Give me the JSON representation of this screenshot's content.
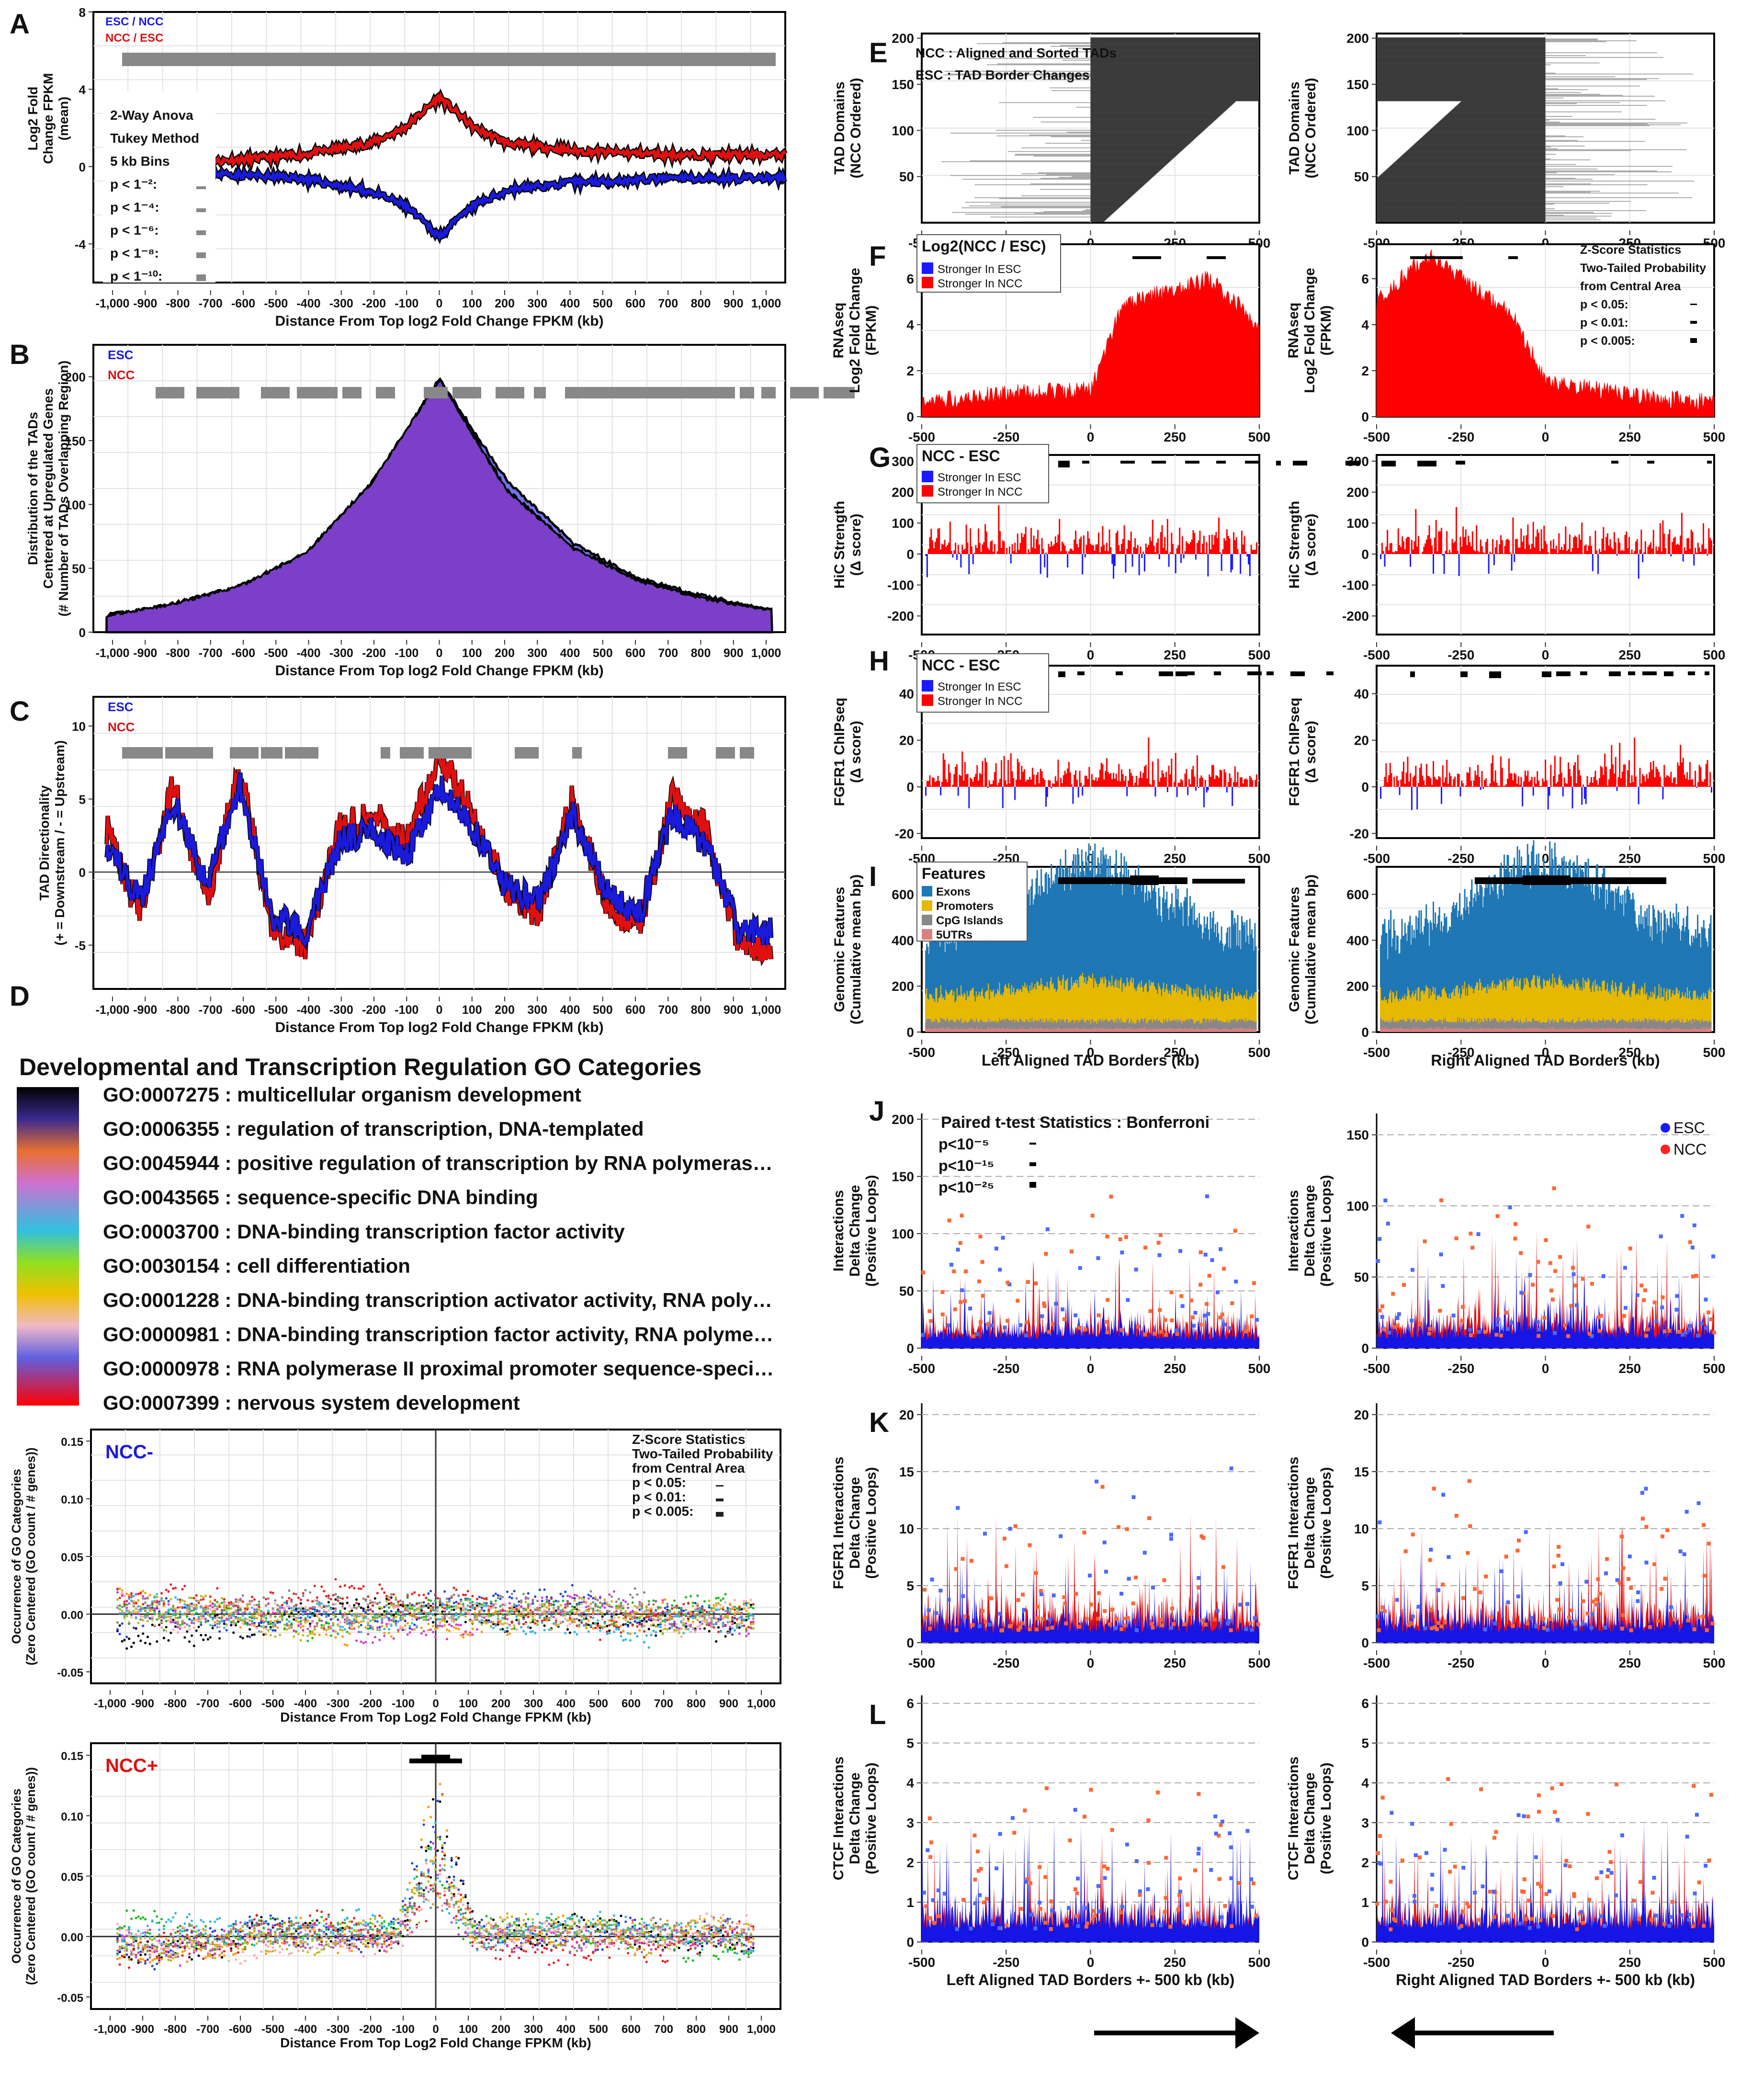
{
  "panel_letters": [
    "A",
    "B",
    "C",
    "D",
    "E",
    "F",
    "G",
    "H",
    "I",
    "J",
    "K",
    "L"
  ],
  "common": {
    "x_dist_label": "Distance From Top log2 Fold Change FPKM (kb)",
    "x_dist_label_go": "Distance From Top Log2 Fold Change FPKM (kb)",
    "x_dist_ticks": [
      "-1,000",
      "-900",
      "-800",
      "-700",
      "-600",
      "-500",
      "-400",
      "-300",
      "-200",
      "-100",
      "0",
      "100",
      "200",
      "300",
      "400",
      "500",
      "600",
      "700",
      "800",
      "900",
      "1,000"
    ],
    "x_tad_ticks": [
      "-500",
      "-250",
      "0",
      "250",
      "500"
    ],
    "left_aligned": "Left Aligned TAD Borders (kb)",
    "right_aligned": "Right Aligned TAD Borders (kb)",
    "left_aligned_pm": "Left Aligned TAD Borders +- 500 kb (kb)",
    "right_aligned_pm": "Right Aligned TAD Borders +- 500 kb (kb)",
    "colors": {
      "esc": "#1a1adb",
      "ncc": "#e01010",
      "grey": "#888888",
      "purple": "#7b3fc9",
      "exons": "#1f77b4",
      "promoters": "#e6b800",
      "cpg": "#888888",
      "utr": "#d98080"
    }
  },
  "chart_data": [
    {
      "panel": "A",
      "type": "line",
      "title": "",
      "ylabel": "Log2 Fold Change FPKM (mean)",
      "xlabel": "Distance From Top log2 Fold Change FPKM (kb)",
      "xlim": [
        -1000,
        1000
      ],
      "ylim": [
        -6,
        8
      ],
      "yticks": [
        "8",
        "4",
        "0",
        "-4"
      ],
      "legend": [
        "ESC / NCC",
        "NCC / ESC"
      ],
      "stats_text": [
        "2-Way Anova",
        "Tukey Method",
        "5 kb Bins",
        "p < 1⁻²:",
        "p < 1⁻⁴:",
        "p < 1⁻⁶:",
        "p < 1⁻⁸:",
        "p < 1⁻¹⁰:"
      ],
      "series": [
        {
          "name": "NCC / ESC",
          "x": [
            -700,
            -400,
            -200,
            -100,
            0,
            100,
            200,
            400,
            700,
            1000
          ],
          "values": [
            0.2,
            0.6,
            1.2,
            2.0,
            3.6,
            2.0,
            1.2,
            0.8,
            0.6,
            0.6
          ]
        },
        {
          "name": "ESC / NCC",
          "x": [
            -700,
            -400,
            -200,
            -100,
            0,
            100,
            200,
            400,
            700,
            1000
          ],
          "values": [
            -0.3,
            -0.6,
            -1.3,
            -2.0,
            -3.6,
            -2.0,
            -1.2,
            -0.8,
            -0.6,
            -0.6
          ]
        }
      ]
    },
    {
      "panel": "B",
      "type": "area",
      "ylabel": "Distribution of the TADs Centered at Upregulated Genes (# Number of TADs Overlapping Region)",
      "xlabel": "Distance From Top log2 Fold Change FPKM (kb)",
      "xlim": [
        -1000,
        1000
      ],
      "ylim": [
        0,
        225
      ],
      "yticks": [
        "200",
        "150",
        "100",
        "50",
        "0"
      ],
      "legend": [
        "ESC",
        "NCC"
      ],
      "series": [
        {
          "name": "ESC",
          "x": [
            -1000,
            -800,
            -600,
            -400,
            -200,
            0,
            200,
            400,
            600,
            800,
            1000
          ],
          "values": [
            12,
            20,
            35,
            60,
            115,
            198,
            120,
            70,
            42,
            28,
            17
          ]
        },
        {
          "name": "NCC",
          "x": [
            -1000,
            -800,
            -600,
            -400,
            -200,
            0,
            200,
            400,
            600,
            800,
            1000
          ],
          "values": [
            13,
            22,
            36,
            62,
            118,
            198,
            112,
            66,
            40,
            26,
            17
          ]
        }
      ]
    },
    {
      "panel": "C",
      "type": "line",
      "ylabel": "TAD Directionality (+ = Downstream / - = Upstream)",
      "xlabel": "Distance From Top log2 Fold Change FPKM (kb)",
      "xlim": [
        -1000,
        1000
      ],
      "ylim": [
        -8,
        12
      ],
      "yticks": [
        "10",
        "5",
        "0",
        "-5"
      ],
      "legend": [
        "ESC",
        "NCC"
      ],
      "series": [
        {
          "name": "ESC",
          "x": [
            -1000,
            -900,
            -800,
            -700,
            -600,
            -500,
            -400,
            -300,
            -200,
            -100,
            0,
            100,
            200,
            300,
            400,
            500,
            600,
            700,
            800,
            900,
            1000
          ],
          "values": [
            2,
            -2,
            5,
            -1,
            6,
            -3,
            -4,
            2,
            3,
            1,
            6,
            3,
            -1,
            -2,
            4,
            -1,
            -3,
            4,
            2,
            -4,
            -4
          ]
        },
        {
          "name": "NCC",
          "x": [
            -1000,
            -900,
            -800,
            -700,
            -600,
            -500,
            -400,
            -300,
            -200,
            -100,
            0,
            100,
            200,
            300,
            400,
            500,
            600,
            700,
            800,
            900,
            1000
          ],
          "values": [
            3,
            -3,
            6,
            -2,
            7,
            -4,
            -5,
            3,
            4,
            2,
            8,
            4,
            -1,
            -3,
            5,
            -2,
            -4,
            5,
            3,
            -5,
            -5
          ]
        }
      ]
    },
    {
      "panel": "D",
      "type": "table",
      "title": "Developmental and Transcription Regulation GO Categories",
      "categories": [
        "GO:0007275 : multicellular organism development",
        "GO:0006355 : regulation of transcription, DNA-templated",
        "GO:0045944 : positive regulation of transcription by RNA polymeras…",
        "GO:0043565 : sequence-specific DNA binding",
        "GO:0003700 : DNA-binding transcription factor activity",
        "GO:0030154 : cell differentiation",
        "GO:0001228 : DNA-binding transcription activator activity, RNA poly…",
        "GO:0000981 : DNA-binding transcription factor activity, RNA polyme…",
        "GO:0000978 : RNA polymerase II proximal promoter sequence-speci…",
        "GO:0007399 : nervous system development"
      ]
    },
    {
      "panel": "D-NCC-",
      "type": "scatter",
      "title": "NCC-",
      "ylabel": "Occurrence of GO Categories (Zero Centered (GO count / # genes))",
      "xlabel": "Distance From Top Log2 Fold Change FPKM (kb)",
      "xlim": [
        -1000,
        1000
      ],
      "ylim": [
        -0.06,
        0.16
      ],
      "yticks": [
        "0.15",
        "0.10",
        "0.05",
        "0.00",
        "-0.05"
      ],
      "stats_text": [
        "Z-Score Statistics",
        "Two-Tailed Probability",
        "from Central Area",
        "p < 0.05:",
        "p < 0.01:",
        "p < 0.005:"
      ]
    },
    {
      "panel": "D-NCC+",
      "type": "scatter",
      "title": "NCC+",
      "ylabel": "Occurrence of GO Categories (Zero Centered (GO count / # genes))",
      "xlabel": "Distance From Top Log2 Fold Change FPKM (kb)",
      "xlim": [
        -1000,
        1000
      ],
      "ylim": [
        -0.06,
        0.16
      ],
      "yticks": [
        "0.15",
        "0.10",
        "0.05",
        "0.00",
        "-0.05"
      ],
      "series": [
        {
          "name": "peak",
          "x": [
            -100,
            0,
            100
          ],
          "values": [
            0.0,
            0.13,
            0.0
          ]
        }
      ]
    },
    {
      "panel": "E",
      "type": "bar",
      "ylabel": "TAD Domains (NCC Ordered)",
      "yticks": [
        "200",
        "150",
        "100",
        "50"
      ],
      "legend": [
        "NCC : Aligned and Sorted TADs",
        "ESC : TAD Border Changes"
      ],
      "xlim": [
        -500,
        500
      ],
      "ylim": [
        0,
        205
      ]
    },
    {
      "panel": "F",
      "type": "area",
      "ylabel": "RNAseq Log2 Fold Change (FPKM)",
      "legend_title": "Log2(NCC / ESC)",
      "legend": [
        "Stronger In ESC",
        "Stronger In NCC"
      ],
      "stats_text": [
        "Z-Score Statistics",
        "Two-Tailed Probability",
        "from Central Area",
        "p < 0.05:",
        "p < 0.01:",
        "p < 0.005:"
      ],
      "yticks": [
        "6",
        "4",
        "2",
        "0"
      ],
      "xlim": [
        -500,
        500
      ],
      "ylim": [
        0,
        7.5
      ],
      "series": [
        {
          "name": "left",
          "x": [
            -500,
            -250,
            0,
            100,
            250,
            350,
            500
          ],
          "values": [
            0.6,
            1.0,
            1.2,
            5.0,
            5.5,
            6.0,
            4.0
          ]
        },
        {
          "name": "right",
          "x": [
            -500,
            -350,
            -250,
            -100,
            0,
            250,
            500
          ],
          "values": [
            5.0,
            7.0,
            6.0,
            4.5,
            1.6,
            0.9,
            0.6
          ]
        }
      ]
    },
    {
      "panel": "G",
      "type": "bar",
      "ylabel": "HiC Strength (Δ score)",
      "legend_title": "NCC - ESC",
      "legend": [
        "Stronger In ESC",
        "Stronger In NCC"
      ],
      "yticks": [
        "300",
        "200",
        "100",
        "0",
        "-100",
        "-200"
      ],
      "xlim": [
        -500,
        500
      ],
      "ylim": [
        -260,
        320
      ]
    },
    {
      "panel": "H",
      "type": "bar",
      "ylabel": "FGFR1 ChIPseq (Δ score)",
      "legend_title": "NCC - ESC",
      "legend": [
        "Stronger In ESC",
        "Stronger In NCC"
      ],
      "yticks": [
        "40",
        "20",
        "0",
        "-20"
      ],
      "xlim": [
        -500,
        500
      ],
      "ylim": [
        -22,
        52
      ]
    },
    {
      "panel": "I",
      "type": "bar",
      "ylabel": "Genomic Features (Cumulative mean bp)",
      "legend_title": "Features",
      "legend": [
        "Exons",
        "Promoters",
        "CpG Islands",
        "5UTRs"
      ],
      "yticks": [
        "600",
        "400",
        "200",
        "0"
      ],
      "xlim": [
        -500,
        500
      ],
      "ylim": [
        0,
        720
      ]
    },
    {
      "panel": "J",
      "type": "area",
      "ylabel": "Interactions Delta Change (Positive Loops)",
      "stats_text": [
        "Paired t-test Statistics : Bonferroni",
        "p<10⁻⁵",
        "p<10⁻¹⁵",
        "p<10⁻²⁵"
      ],
      "legend": [
        "ESC",
        "NCC"
      ],
      "yticks_left": [
        "200",
        "150",
        "100",
        "50",
        "0"
      ],
      "yticks_right": [
        "150",
        "100",
        "50",
        "0"
      ],
      "xlim": [
        -500,
        500
      ]
    },
    {
      "panel": "K",
      "type": "area",
      "ylabel": "FGFR1 Interactions Delta Change (Positive Loops)",
      "yticks": [
        "20",
        "15",
        "10",
        "5",
        "0"
      ],
      "xlim": [
        -500,
        500
      ],
      "ylim": [
        0,
        21
      ]
    },
    {
      "panel": "L",
      "type": "area",
      "ylabel": "CTCF Interactions Delta Change (Positive Loops)",
      "yticks": [
        "6",
        "5",
        "4",
        "3",
        "2",
        "1",
        "0"
      ],
      "xlim": [
        -500,
        500
      ],
      "ylim": [
        0,
        6.2
      ]
    }
  ]
}
